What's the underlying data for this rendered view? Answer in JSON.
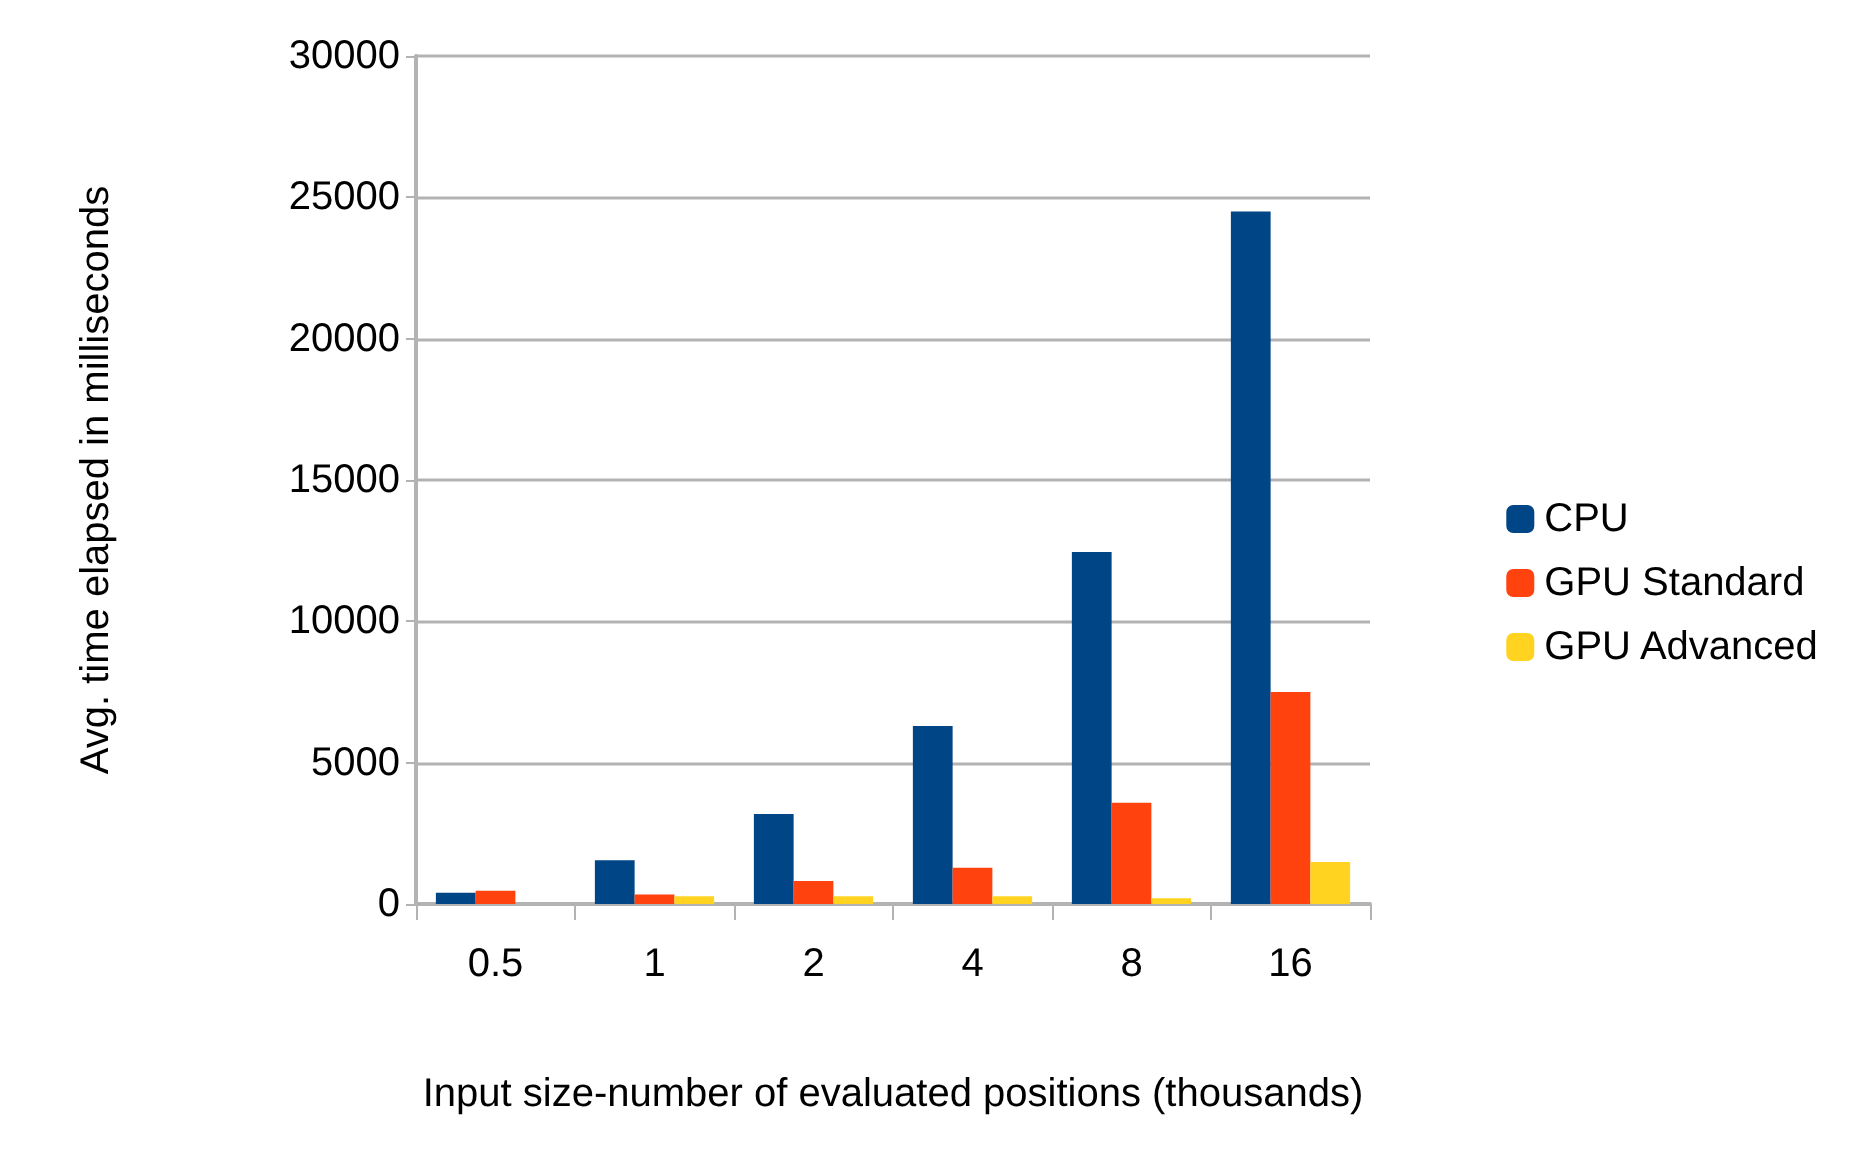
{
  "chart_data": {
    "type": "bar",
    "xlabel": "Input size-number of evaluated positions (thousands)",
    "ylabel": "Avg. time elapsed in milliseconds",
    "categories": [
      "0.5",
      "1",
      "2",
      "4",
      "8",
      "16"
    ],
    "series": [
      {
        "name": "CPU",
        "color": "#004586",
        "values": [
          400,
          1550,
          3180,
          6300,
          12450,
          24500
        ]
      },
      {
        "name": "GPU Standard",
        "color": "#ff420e",
        "values": [
          470,
          340,
          810,
          1280,
          3580,
          7500
        ]
      },
      {
        "name": "GPU Advanced",
        "color": "#ffd320",
        "values": [
          0,
          270,
          270,
          270,
          200,
          1490
        ]
      }
    ],
    "ylim": [
      0,
      30000
    ],
    "yticks": [
      0,
      5000,
      10000,
      15000,
      20000,
      25000,
      30000
    ],
    "grid": "y",
    "legend": "right"
  }
}
